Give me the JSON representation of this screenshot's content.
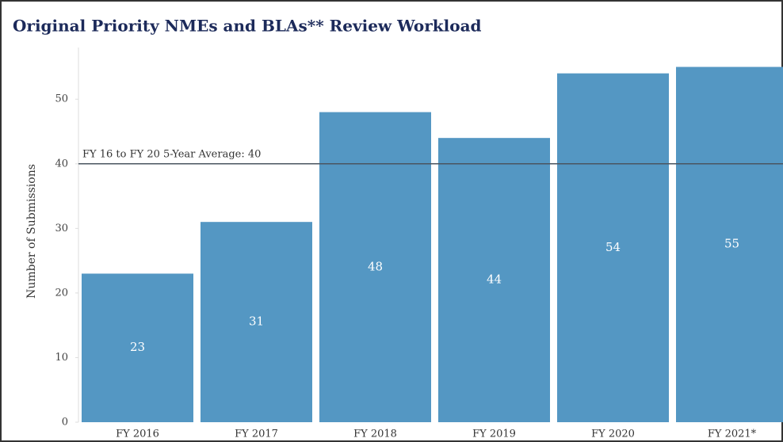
{
  "chart_data": {
    "type": "bar",
    "title": "Original Priority NMEs and BLAs** Review Workload",
    "y_label": "Number of Submissions",
    "categories": [
      "FY 2016",
      "FY 2017",
      "FY 2018",
      "FY 2019",
      "FY 2020",
      "FY 2021*"
    ],
    "values": [
      23,
      31,
      48,
      44,
      54,
      55
    ],
    "color": "#5497c3",
    "ylim": [
      0,
      58
    ],
    "yticks": [
      0,
      10,
      20,
      30,
      40,
      50
    ],
    "reference_line": {
      "value": 40,
      "label": "FY 16 to FY 20 5-Year Average: 40",
      "color": "#4a5560"
    }
  }
}
